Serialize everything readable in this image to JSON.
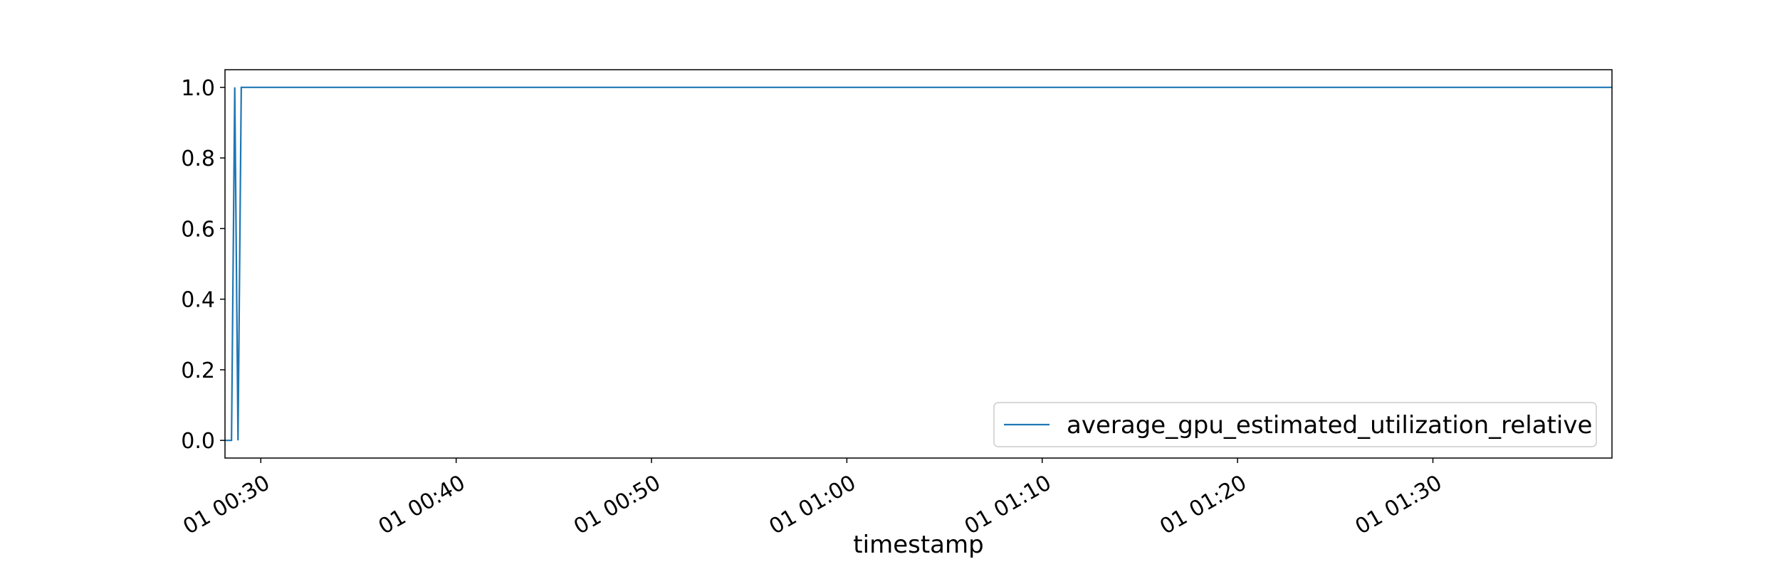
{
  "chart_data": {
    "type": "line",
    "title": "",
    "xlabel": "timestamp",
    "ylabel": "",
    "x_axis": {
      "kind": "time",
      "range": [
        "01 00:28:10",
        "01 01:39:10"
      ],
      "ticks": [
        {
          "value": "01 00:30:00",
          "label": "01 00:30"
        },
        {
          "value": "01 00:40:00",
          "label": "01 00:40"
        },
        {
          "value": "01 00:50:00",
          "label": "01 00:50"
        },
        {
          "value": "01 01:00:00",
          "label": "01 01:00"
        },
        {
          "value": "01 01:10:00",
          "label": "01 01:10"
        },
        {
          "value": "01 01:20:00",
          "label": "01 01:20"
        },
        {
          "value": "01 01:30:00",
          "label": "01 01:30"
        }
      ]
    },
    "y_axis": {
      "ylim": [
        -0.05,
        1.05
      ],
      "ticks": [
        {
          "value": 0.0,
          "label": "0.0"
        },
        {
          "value": 0.2,
          "label": "0.2"
        },
        {
          "value": 0.4,
          "label": "0.4"
        },
        {
          "value": 0.6,
          "label": "0.6"
        },
        {
          "value": 0.8,
          "label": "0.8"
        },
        {
          "value": 1.0,
          "label": "1.0"
        }
      ]
    },
    "grid": false,
    "legend": {
      "placement": "lower-right"
    },
    "series": [
      {
        "name": "average_gpu_estimated_utilization_relative",
        "color": "#1f77b4",
        "points": [
          {
            "x": "01 00:28:10",
            "y": 0.0
          },
          {
            "x": "01 00:28:30",
            "y": 0.0
          },
          {
            "x": "01 00:28:40",
            "y": 1.0
          },
          {
            "x": "01 00:28:50",
            "y": 0.0
          },
          {
            "x": "01 00:29:00",
            "y": 1.0
          },
          {
            "x": "01 01:39:10",
            "y": 1.0
          }
        ]
      }
    ]
  }
}
